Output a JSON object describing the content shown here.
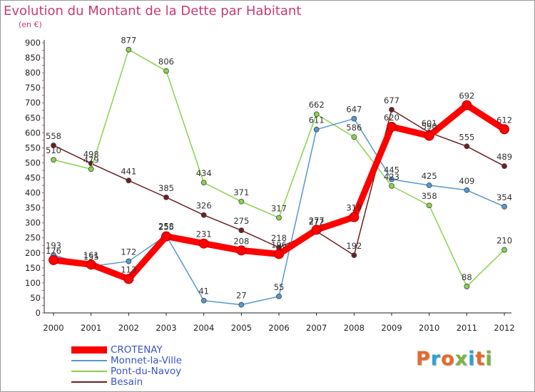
{
  "title": "Evolution du Montant de la Dette par Habitant",
  "unit": "(en €)",
  "logo": {
    "text": "Proxiti",
    "colors": [
      "#e8692a",
      "#27a3d7",
      "#e8692a",
      "#7cb342",
      "#27a3d7",
      "#e8692a",
      "#7cb342"
    ]
  },
  "chart_data": {
    "type": "line",
    "title": "Evolution du Montant de la Dette par Habitant",
    "ylabel": "(en €)",
    "x": [
      "2000",
      "2001",
      "2002",
      "2003",
      "2004",
      "2005",
      "2006",
      "2007",
      "2008",
      "2009",
      "2010",
      "2011",
      "2012"
    ],
    "yticks": [
      0,
      50,
      100,
      150,
      200,
      250,
      300,
      350,
      400,
      450,
      500,
      550,
      600,
      650,
      700,
      750,
      800,
      850,
      900
    ],
    "ylim": [
      0,
      900
    ],
    "grid": false,
    "legend_position": "bottom-left",
    "series": [
      {
        "name": "Besain",
        "color": "#6d1f22",
        "values": [
          558,
          498,
          441,
          385,
          326,
          275,
          218,
          272,
          192,
          677,
          601,
          555,
          489
        ]
      },
      {
        "name": "Pont-du-Navoy",
        "color": "#8ad24e",
        "values": [
          510,
          479,
          877,
          806,
          434,
          371,
          317,
          662,
          586,
          423,
          358,
          88,
          210
        ]
      },
      {
        "name": "Monnet-la-Ville",
        "color": "#5698cf",
        "values": [
          193,
          155,
          172,
          258,
          41,
          27,
          55,
          611,
          647,
          445,
          425,
          409,
          354
        ]
      },
      {
        "name": "CROTENAY",
        "color": "#ff0000",
        "values": [
          176,
          161,
          113,
          255,
          231,
          208,
          196,
          277,
          319,
          620,
          590,
          692,
          612
        ]
      }
    ]
  }
}
